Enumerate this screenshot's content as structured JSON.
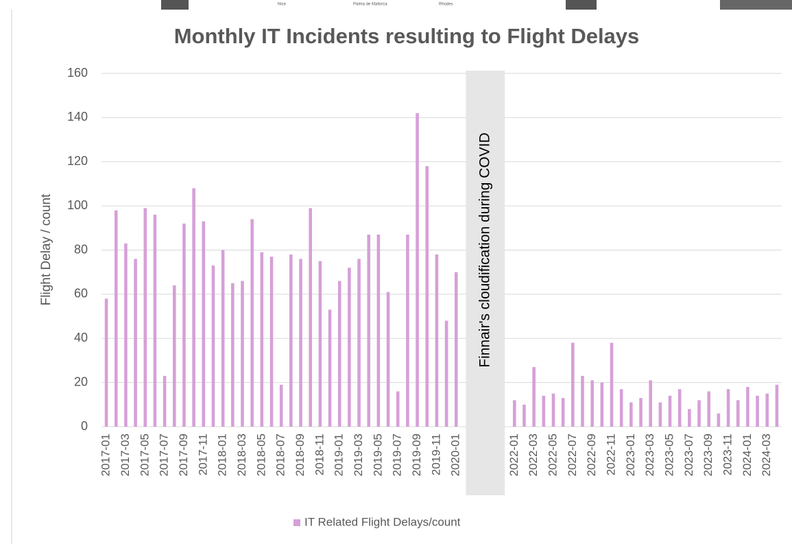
{
  "banner": [
    "Nice",
    "Palma de Mallorca",
    "Rhodes"
  ],
  "chart_data": {
    "type": "bar",
    "title": "Monthly IT Incidents resulting to Flight Delays",
    "y_label": "Flight Delay / count",
    "annotation": "Finnair's cloudification during COVID",
    "categories": [
      "2017-01",
      null,
      "2017-03",
      null,
      "2017-05",
      null,
      "2017-07",
      null,
      "2017-09",
      null,
      "2017-11",
      null,
      "2018-01",
      null,
      "2018-03",
      null,
      "2018-05",
      null,
      "2018-07",
      null,
      "2018-09",
      null,
      "2018-11",
      null,
      "2019-01",
      null,
      "2019-03",
      null,
      "2019-05",
      null,
      "2019-07",
      null,
      "2019-09",
      null,
      "2019-11",
      null,
      "2020-01",
      null,
      null,
      null,
      null,
      null,
      "2022-01",
      null,
      "2022-03",
      null,
      "2022-05",
      null,
      "2022-07",
      null,
      "2022-09",
      null,
      "2022-11",
      null,
      "2023-01",
      null,
      "2023-03",
      null,
      "2023-05",
      null,
      "2023-07",
      null,
      "2023-09",
      null,
      "2023-11",
      null,
      "2024-01",
      null,
      "2024-03",
      null
    ],
    "series": [
      {
        "name": "IT Related Flight Delays/count",
        "color": "#d6a0d8",
        "values": [
          58,
          98,
          83,
          76,
          99,
          96,
          23,
          64,
          92,
          108,
          93,
          73,
          80,
          65,
          66,
          94,
          79,
          77,
          19,
          78,
          76,
          99,
          75,
          53,
          66,
          72,
          76,
          87,
          87,
          61,
          16,
          87,
          142,
          118,
          78,
          48,
          70,
          null,
          null,
          null,
          null,
          null,
          12,
          10,
          27,
          14,
          15,
          13,
          38,
          23,
          21,
          20,
          38,
          17,
          11,
          13,
          21,
          11,
          14,
          17,
          8,
          12,
          16,
          6,
          17,
          12,
          18,
          14,
          15,
          19
        ]
      }
    ],
    "ylim": [
      0,
      160
    ],
    "yticks": [
      0,
      20,
      40,
      60,
      80,
      100,
      120,
      140,
      160
    ],
    "grid": true,
    "legend": "bottom"
  }
}
